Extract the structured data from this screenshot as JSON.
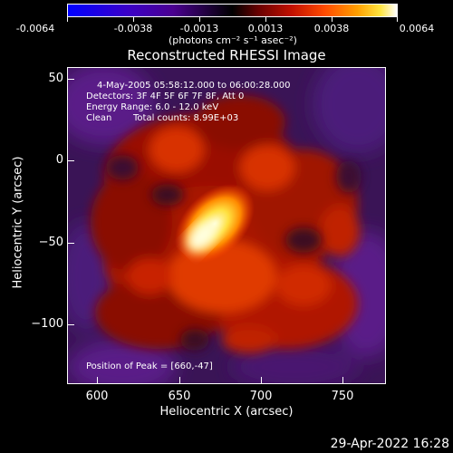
{
  "colorbar": {
    "ticks": [
      "-0.0064",
      "-0.0038",
      "-0.0013",
      "0.0013",
      "0.0038",
      "0.0064"
    ],
    "units": "(photons cm⁻² s⁻¹ asec⁻²)"
  },
  "title": "Reconstructed RHESSI Image",
  "annotations": {
    "time_range": "4-May-2005 05:58:12.000 to 06:00:28.000",
    "detectors": "Detectors: 3F 4F 5F 6F 7F 8F, Att 0",
    "energy": "Energy Range: 6.0 - 12.0 keV",
    "method": "Clean",
    "total_counts": "Total counts: 8.99E+03",
    "peak": "Position of Peak = [660,-47]"
  },
  "axes": {
    "xlabel": "Heliocentric X (arcsec)",
    "ylabel": "Heliocentric Y (arcsec)",
    "xticks": [
      "600",
      "650",
      "700",
      "750"
    ],
    "yticks": [
      "50",
      "0",
      "−50",
      "−100"
    ]
  },
  "footer": {
    "date": "29-Apr-2022 16:28"
  },
  "colors": {
    "background": "#000000",
    "peak": "#ffffd0",
    "hot": "#ff5000",
    "mid": "#c01000",
    "low": "#5a1a80"
  }
}
